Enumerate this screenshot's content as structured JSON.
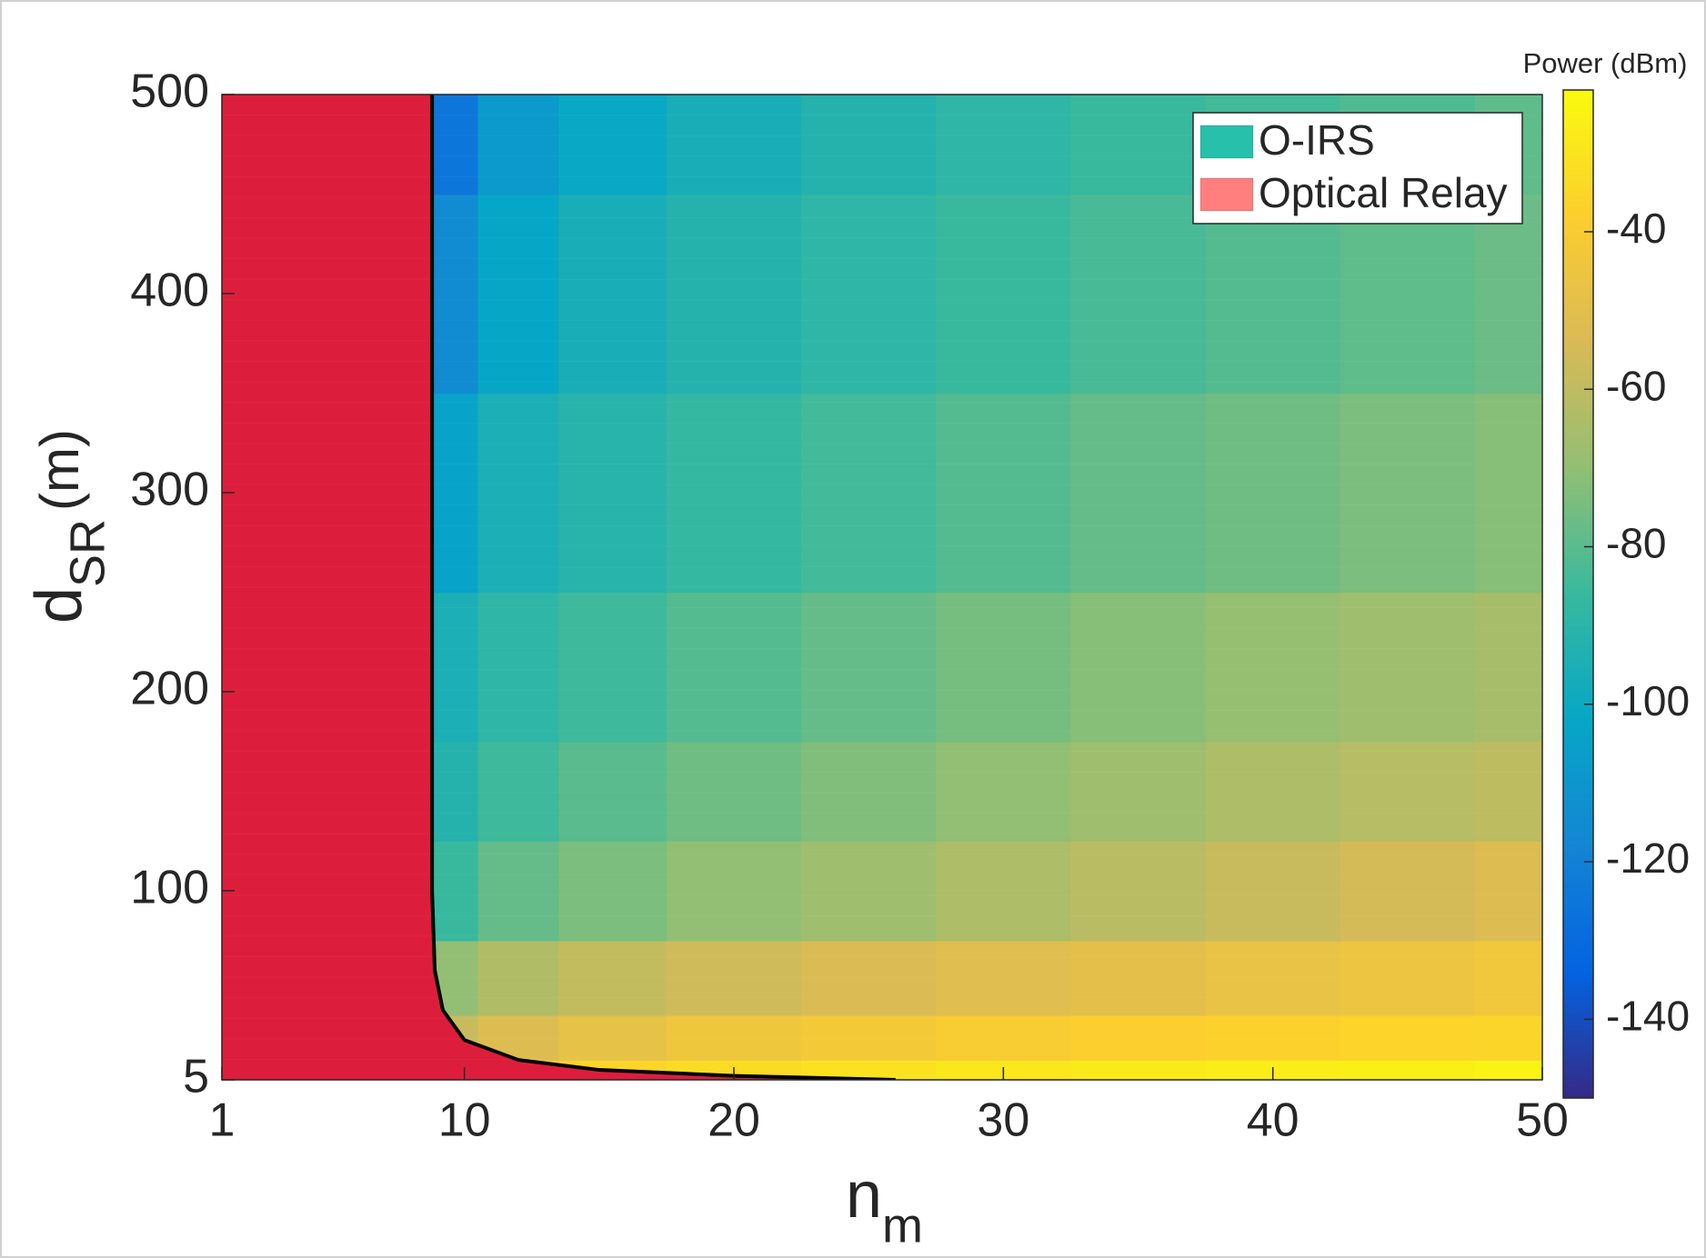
{
  "chart_data": {
    "type": "heatmap",
    "colormap": "parula",
    "x": [
      9,
      12,
      15,
      20,
      25,
      30,
      35,
      40,
      45,
      50
    ],
    "y": [
      5,
      25,
      50,
      100,
      150,
      200,
      300,
      400,
      500
    ],
    "z": [
      [
        -45,
        -40,
        -36,
        -33,
        -31,
        -29,
        -28,
        -27,
        -26,
        -25
      ],
      [
        -58,
        -52,
        -48,
        -44,
        -42,
        -40,
        -38,
        -37,
        -36,
        -35
      ],
      [
        -70,
        -63,
        -59,
        -56,
        -53,
        -51,
        -49,
        -47,
        -45,
        -43
      ],
      [
        -86,
        -78,
        -74,
        -70,
        -67,
        -64,
        -61,
        -58,
        -55,
        -52
      ],
      [
        -92,
        -85,
        -80,
        -76,
        -73,
        -70,
        -67,
        -64,
        -62,
        -60
      ],
      [
        -95,
        -89,
        -85,
        -81,
        -78,
        -75,
        -72,
        -69,
        -67,
        -65
      ],
      [
        -104,
        -95,
        -91,
        -87,
        -84,
        -81,
        -78,
        -76,
        -74,
        -72
      ],
      [
        -115,
        -102,
        -96,
        -92,
        -89,
        -86,
        -83,
        -81,
        -79,
        -77
      ],
      [
        -125,
        -108,
        -101,
        -96,
        -92,
        -89,
        -86,
        -84,
        -82,
        -79
      ]
    ],
    "boundary": {
      "x": [
        8.8,
        8.8,
        8.9,
        9.2,
        10,
        12,
        15,
        20,
        26
      ],
      "y": [
        500,
        100,
        60,
        40,
        25,
        15,
        10,
        7,
        5
      ],
      "color": "#000000"
    },
    "relay_region_color": "#dc1e3c",
    "xlim": [
      1,
      50
    ],
    "xticks": [
      1,
      10,
      20,
      30,
      40,
      50
    ],
    "ylim": [
      5,
      500
    ],
    "yticks": [
      5,
      100,
      200,
      300,
      400,
      500
    ],
    "xlabel": {
      "text": "n",
      "subscript": "m"
    },
    "ylabel": {
      "text": "d",
      "subscript": "SR",
      "suffix": "(m)"
    },
    "colorbar": {
      "label": "Power (dBm)",
      "lim": [
        -150,
        -22
      ],
      "ticks": [
        -140,
        -120,
        -100,
        -80,
        -60,
        -40
      ]
    },
    "legend": {
      "location": "northeast",
      "entries": [
        {
          "name": "O-IRS",
          "color": "#26c0ab"
        },
        {
          "name": "Optical Relay",
          "color": "#ff7f7f"
        }
      ]
    }
  }
}
